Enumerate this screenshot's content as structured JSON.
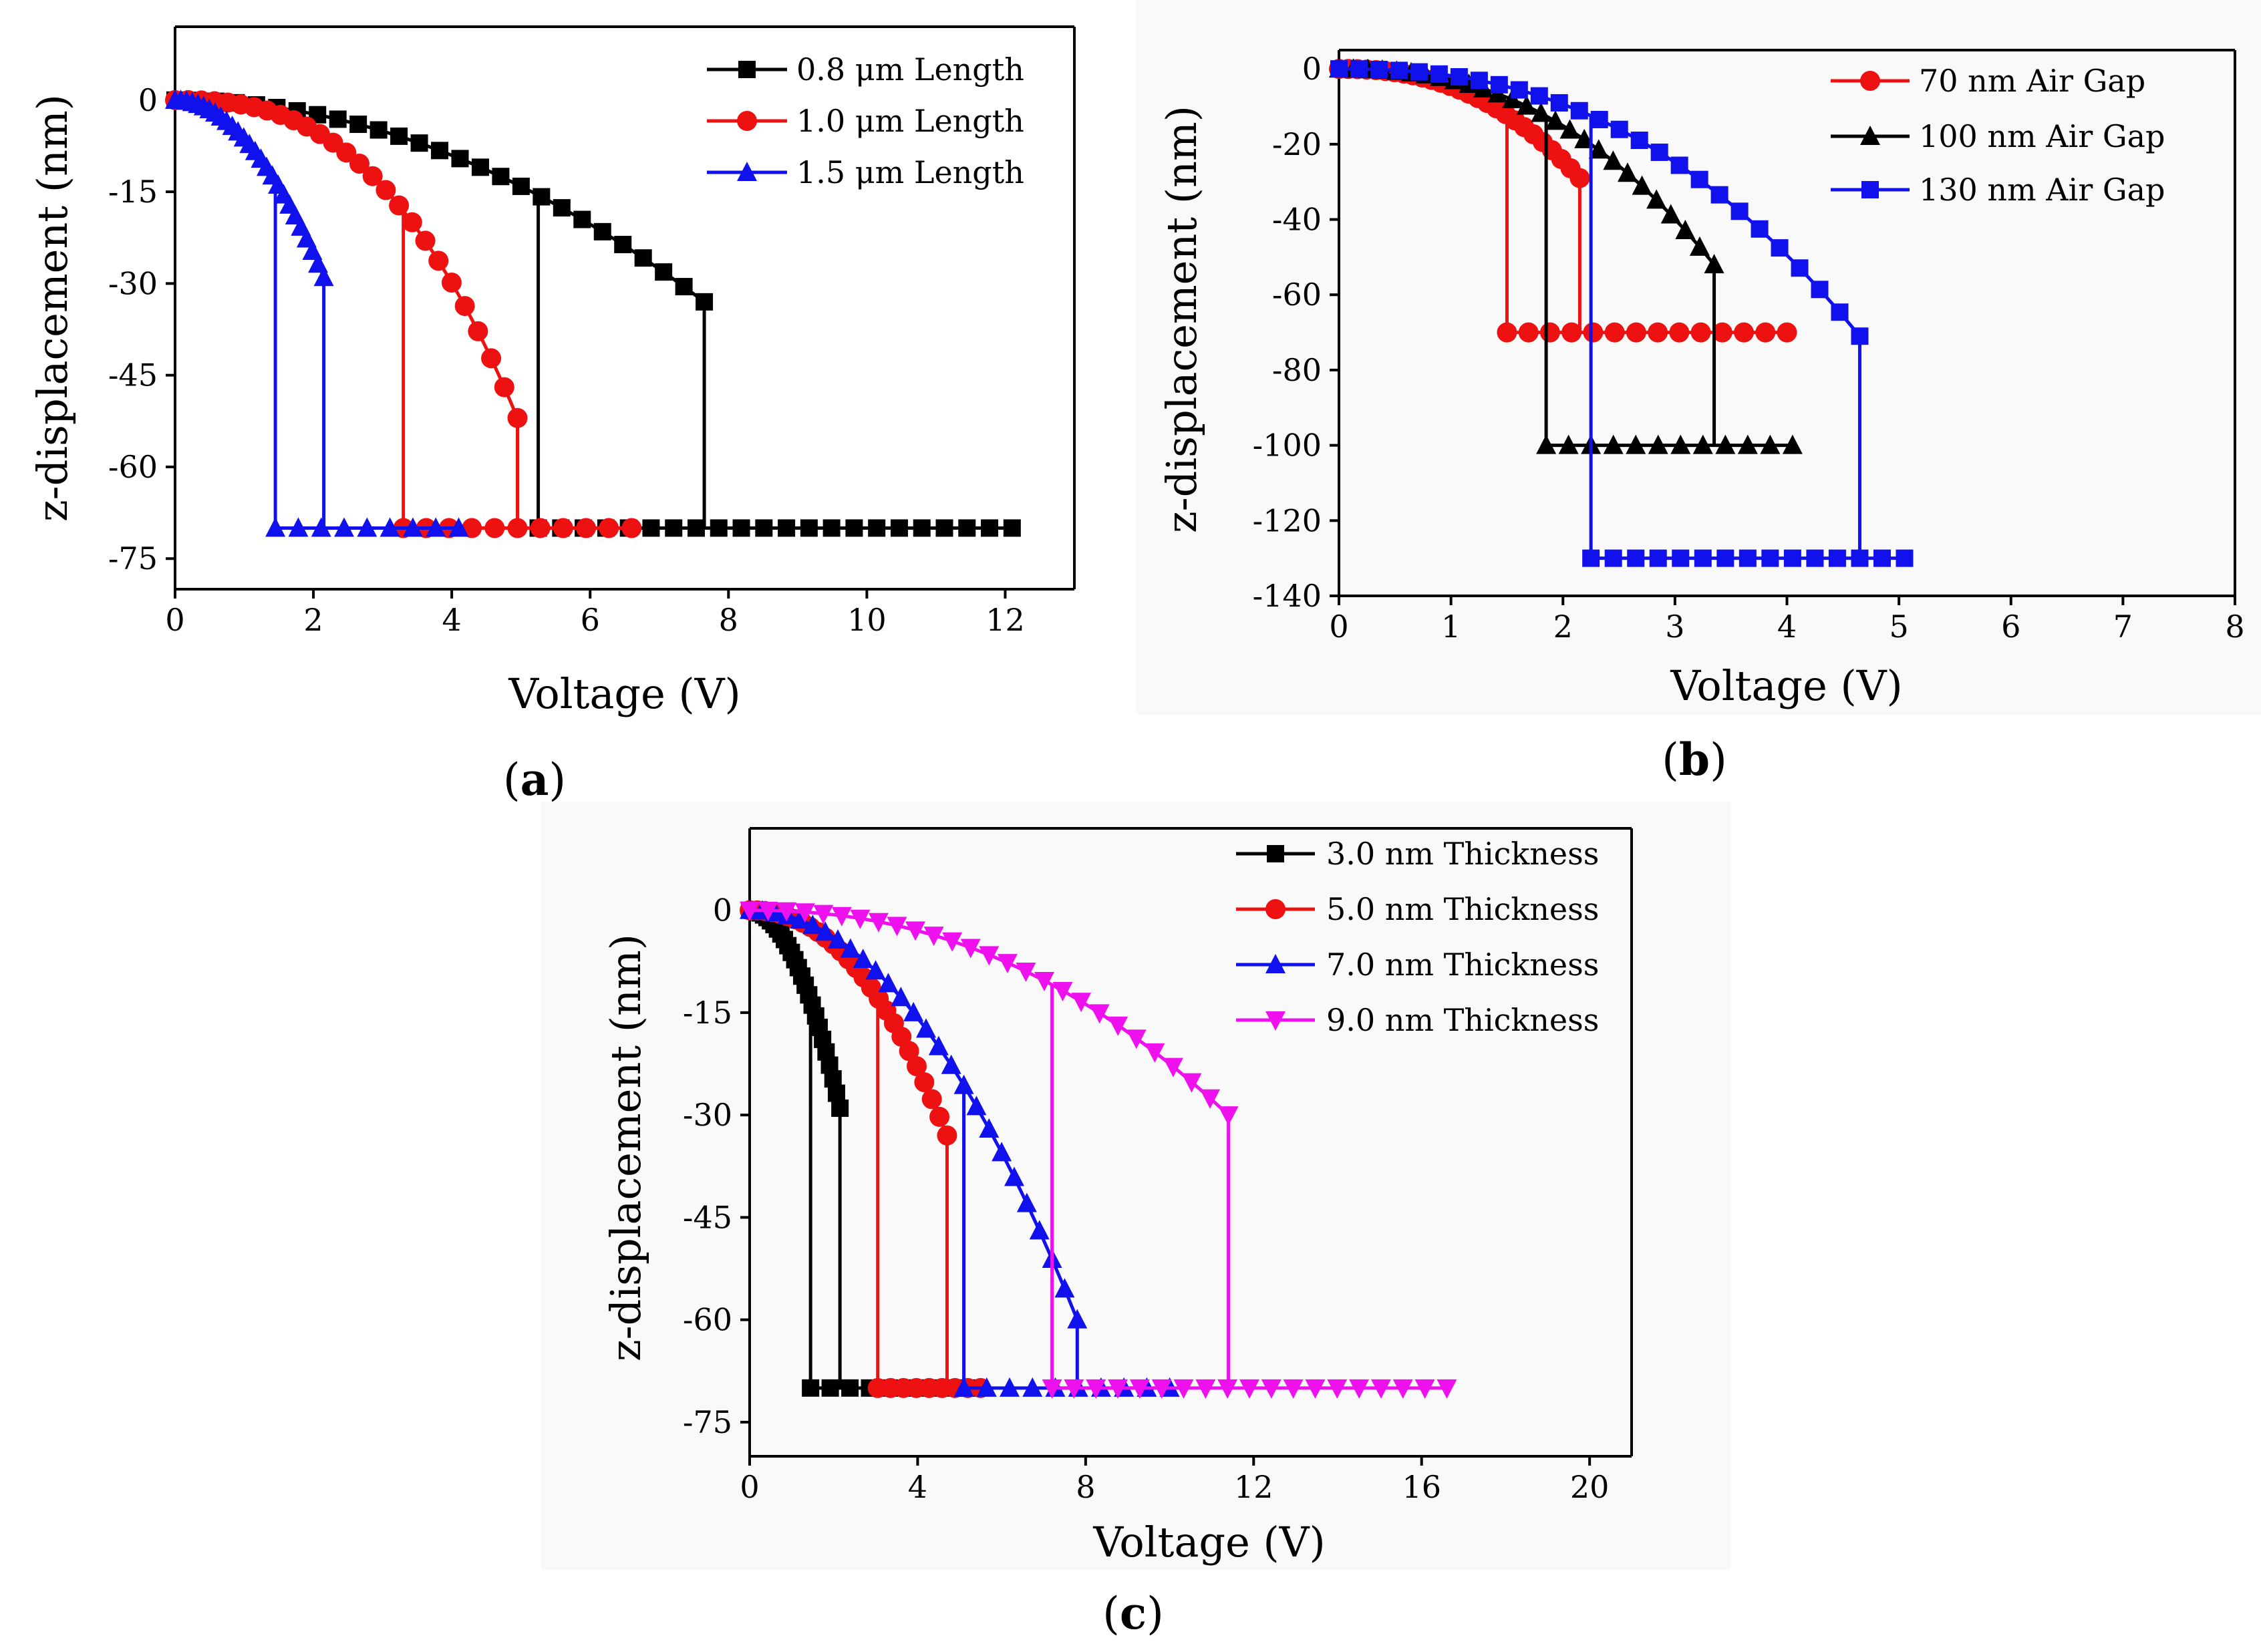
{
  "chart_data": [
    {
      "id": "a",
      "type": "line",
      "caption_open": "(",
      "caption_letter": "a",
      "caption_close": ")",
      "xlabel": "Voltage (V)",
      "ylabel": "z-displacement (nm)",
      "xlim": [
        0,
        13
      ],
      "ylim": [
        -80,
        12
      ],
      "xticks": [
        0,
        2,
        4,
        6,
        8,
        10,
        12
      ],
      "xtick_labels": [
        "0",
        "2",
        "4",
        "6",
        "8",
        "10",
        "12"
      ],
      "yticks": [
        0,
        -15,
        -30,
        -45,
        -60,
        -75
      ],
      "ytick_labels": [
        "0",
        "-15",
        "-30",
        "-45",
        "-60",
        "-75"
      ],
      "legend_position": "top-right",
      "series": [
        {
          "name": "0.8 μm Length",
          "color": "#000000",
          "marker": "square",
          "max_v": 12.1,
          "pull_in": 7.65,
          "release": 5.25,
          "d_pull": -33,
          "d_contact": -70,
          "exponent": 2.0
        },
        {
          "name": "1.0 μm Length",
          "color": "#ee1111",
          "marker": "circle",
          "max_v": 6.6,
          "pull_in": 4.95,
          "release": 3.3,
          "d_pull": -52,
          "d_contact": -70,
          "exponent": 2.6
        },
        {
          "name": "1.5 μm Length",
          "color": "#1111ee",
          "marker": "triangle-up",
          "max_v": 4.1,
          "pull_in": 2.15,
          "release": 1.45,
          "d_pull": -29,
          "d_contact": -70,
          "exponent": 2.0
        }
      ]
    },
    {
      "id": "b",
      "type": "line",
      "caption_open": "(",
      "caption_letter": "b",
      "caption_close": ")",
      "xlabel": "Voltage (V)",
      "ylabel": "z-displacement (nm)",
      "xlim": [
        0,
        8
      ],
      "ylim": [
        -140,
        5
      ],
      "xticks": [
        0,
        1,
        2,
        3,
        4,
        5,
        6,
        7,
        8
      ],
      "xtick_labels": [
        "0",
        "1",
        "2",
        "3",
        "4",
        "5",
        "6",
        "7",
        "8"
      ],
      "yticks": [
        0,
        -20,
        -40,
        -60,
        -80,
        -100,
        -120,
        -140
      ],
      "ytick_labels": [
        "0",
        "-20",
        "-40",
        "-60",
        "-80",
        "-100",
        "-120",
        "-140"
      ],
      "legend_position": "top-right",
      "series": [
        {
          "name": "70 nm Air Gap",
          "color": "#ee1111",
          "marker": "circle",
          "max_v": 4.0,
          "pull_in": 2.15,
          "release": 1.5,
          "d_pull": -29,
          "d_contact": -70,
          "exponent": 2.4
        },
        {
          "name": "100 nm Air Gap",
          "color": "#000000",
          "marker": "triangle-up",
          "max_v": 4.05,
          "pull_in": 3.35,
          "release": 1.85,
          "d_pull": -52,
          "d_contact": -100,
          "exponent": 2.4
        },
        {
          "name": "130 nm Air Gap",
          "color": "#1111ee",
          "marker": "square",
          "max_v": 5.05,
          "pull_in": 4.65,
          "release": 2.25,
          "d_pull": -71,
          "d_contact": -130,
          "exponent": 2.4
        }
      ]
    },
    {
      "id": "c",
      "type": "line",
      "caption_open": "(",
      "caption_letter": "c",
      "caption_close": ")",
      "xlabel": "Voltage (V)",
      "ylabel": "z-displacement (nm)",
      "xlim": [
        0,
        21
      ],
      "ylim": [
        -80,
        12
      ],
      "xticks": [
        0,
        4,
        8,
        12,
        16,
        20
      ],
      "xtick_labels": [
        "0",
        "4",
        "8",
        "12",
        "16",
        "20"
      ],
      "yticks": [
        0,
        -15,
        -30,
        -45,
        -60,
        -75
      ],
      "ytick_labels": [
        "0",
        "-15",
        "-30",
        "-45",
        "-60",
        "-75"
      ],
      "legend_position": "top-right",
      "series": [
        {
          "name": "3.0 nm Thickness",
          "color": "#000000",
          "marker": "square",
          "max_v": 5.2,
          "pull_in": 2.15,
          "release": 1.45,
          "d_pull": -29,
          "d_contact": -70,
          "exponent": 2.0
        },
        {
          "name": "5.0 nm Thickness",
          "color": "#ee1111",
          "marker": "circle",
          "max_v": 5.5,
          "pull_in": 4.7,
          "release": 3.05,
          "d_pull": -33,
          "d_contact": -70,
          "exponent": 2.2
        },
        {
          "name": "7.0 nm Thickness",
          "color": "#1111ee",
          "marker": "triangle-up",
          "max_v": 10.0,
          "pull_in": 7.8,
          "release": 5.1,
          "d_pull": -60,
          "d_contact": -70,
          "exponent": 2.0
        },
        {
          "name": "9.0 nm Thickness",
          "color": "#ee11ee",
          "marker": "triangle-down",
          "max_v": 16.6,
          "pull_in": 11.4,
          "release": 7.2,
          "d_pull": -30,
          "d_contact": -70,
          "exponent": 2.2
        }
      ]
    }
  ]
}
